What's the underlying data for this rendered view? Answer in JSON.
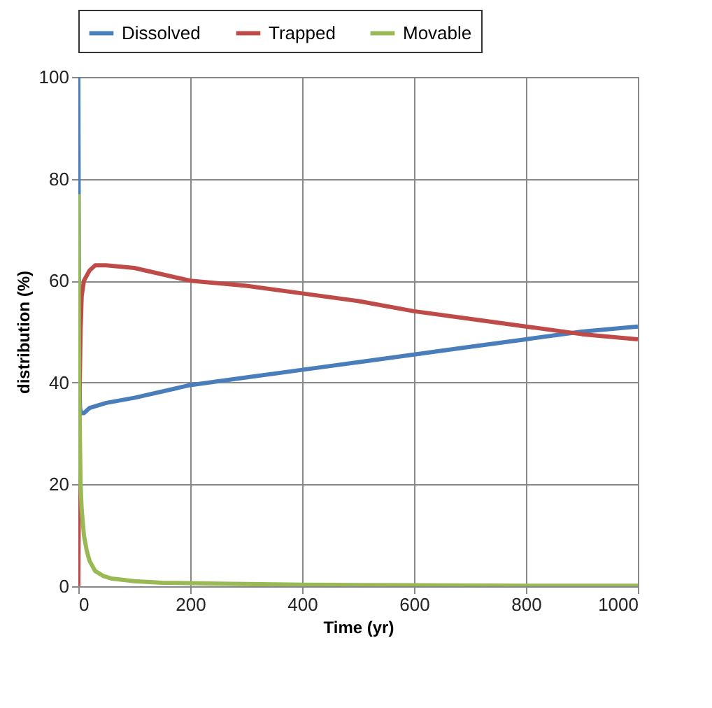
{
  "chart_data": {
    "type": "line",
    "xlabel": "Time (yr)",
    "ylabel": "distribution (%)",
    "xlim": [
      0,
      1000
    ],
    "xticks": [
      0,
      200,
      400,
      600,
      800,
      1000
    ],
    "ylim": [
      0,
      100
    ],
    "yticks": [
      0,
      20,
      40,
      60,
      80,
      100
    ],
    "grid": true,
    "legend": "top",
    "series": [
      {
        "name": "Dissolved",
        "color": "#4a7ebb",
        "x": [
          0,
          1,
          2,
          3,
          5,
          10,
          20,
          50,
          100,
          200,
          300,
          400,
          500,
          600,
          700,
          800,
          900,
          1000
        ],
        "values": [
          100,
          60,
          40,
          35,
          34,
          34,
          35,
          36,
          37,
          39.5,
          41,
          42.5,
          44,
          45.5,
          47,
          48.5,
          50,
          51
        ]
      },
      {
        "name": "Trapped",
        "color": "#be4b48",
        "x": [
          0,
          2,
          4,
          6,
          10,
          20,
          30,
          50,
          100,
          200,
          300,
          400,
          500,
          600,
          700,
          800,
          900,
          1000
        ],
        "values": [
          0,
          36,
          50,
          57,
          60,
          62,
          63,
          63,
          62.5,
          60,
          59,
          57.5,
          56,
          54,
          52.5,
          51,
          49.5,
          48.5
        ]
      },
      {
        "name": "Movable",
        "color": "#98b954",
        "x": [
          0,
          1,
          2,
          4,
          6,
          10,
          15,
          20,
          30,
          45,
          60,
          100,
          150,
          250,
          400,
          600,
          800,
          1000
        ],
        "values": [
          77,
          50,
          35,
          20,
          15,
          10,
          7,
          5,
          3,
          2,
          1.5,
          1,
          0.7,
          0.5,
          0.3,
          0.2,
          0.1,
          0.1
        ]
      }
    ]
  }
}
